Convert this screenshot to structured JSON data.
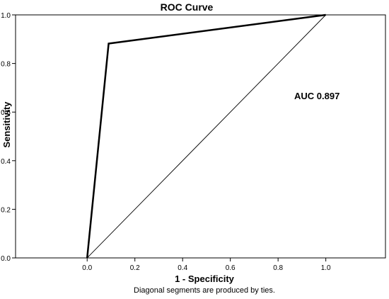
{
  "chart_data": {
    "type": "line",
    "title": "ROC Curve",
    "xlabel": "1 - Specificity",
    "ylabel": "Sensitivity",
    "footnote": "Diagonal segments are produced by ties.",
    "annotation": "AUC 0.897",
    "xlim": [
      -0.3,
      1.25
    ],
    "ylim": [
      0.0,
      1.0
    ],
    "x_ticks": [
      "0.0",
      "0.2",
      "0.4",
      "0.6",
      "0.8",
      "1.0"
    ],
    "y_ticks": [
      "0.0",
      "0.2",
      "0.4",
      "0.6",
      "0.8",
      "1.0"
    ],
    "grid": false,
    "series": [
      {
        "x": [
          0.0,
          0.09,
          1.0
        ],
        "y": [
          0.0,
          0.882,
          1.0
        ],
        "color": "#000000",
        "style": "bold"
      },
      {
        "x": [
          0.0,
          1.0
        ],
        "y": [
          0.0,
          1.0
        ],
        "color": "#000000",
        "style": "thin"
      }
    ]
  }
}
